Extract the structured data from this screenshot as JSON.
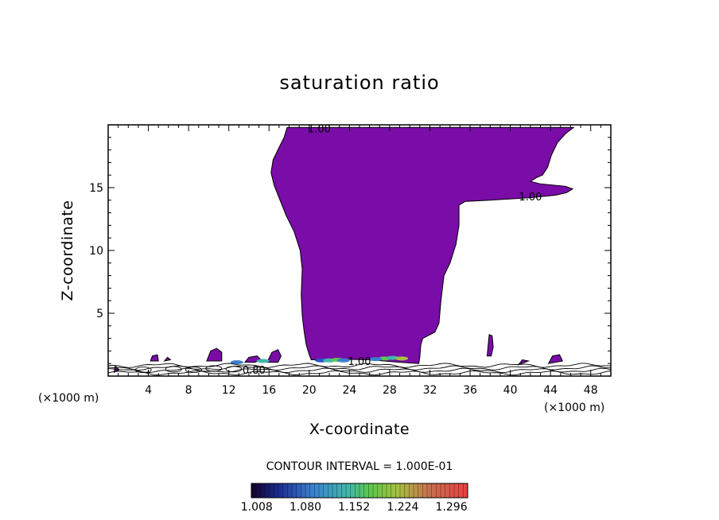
{
  "chart_data": {
    "type": "contour",
    "title": "saturation ratio",
    "xlabel": "X-coordinate",
    "ylabel": "Z-coordinate",
    "x_unit": "(×1000 m)",
    "xlim": [
      0,
      50
    ],
    "ylim": [
      0,
      20
    ],
    "x_ticks": [
      4,
      8,
      12,
      16,
      20,
      24,
      28,
      32,
      36,
      40,
      44,
      48
    ],
    "y_ticks": [
      5,
      10,
      15
    ],
    "contour_interval_text": "CONTOUR INTERVAL = 1.000E-01",
    "contour_labels": [
      {
        "text": "1.00",
        "x": 21,
        "y": 19.7
      },
      {
        "text": "1.00",
        "x": 42,
        "y": 14.3
      },
      {
        "text": "1.00",
        "x": 25,
        "y": 1.2
      },
      {
        "text": "0.80",
        "x": 14.5,
        "y": 0.5
      }
    ],
    "fill_color": "#7a0ca8",
    "colorbar": {
      "tick_labels": [
        "1.008",
        "1.080",
        "1.152",
        "1.224",
        "1.296"
      ],
      "min": 1.0,
      "max": 1.32
    },
    "regions": [
      {
        "name": "main-cloud",
        "points": [
          [
            17.8,
            19.8
          ],
          [
            46.3,
            19.8
          ],
          [
            45.5,
            19.3
          ],
          [
            44.7,
            18.6
          ],
          [
            44.1,
            17.6
          ],
          [
            43.7,
            16.6
          ],
          [
            43.2,
            16.0
          ],
          [
            42.6,
            15.8
          ],
          [
            42.0,
            15.5
          ],
          [
            43.0,
            15.3
          ],
          [
            45.5,
            15.1
          ],
          [
            46.2,
            14.9
          ],
          [
            45.6,
            14.6
          ],
          [
            44.5,
            14.4
          ],
          [
            42.0,
            14.2
          ],
          [
            38.0,
            14.0
          ],
          [
            35.5,
            13.9
          ],
          [
            34.9,
            13.6
          ],
          [
            34.9,
            13.0
          ],
          [
            34.9,
            12.0
          ],
          [
            34.6,
            10.5
          ],
          [
            34.0,
            9.0
          ],
          [
            33.4,
            8.0
          ],
          [
            33.1,
            6.0
          ],
          [
            32.9,
            4.2
          ],
          [
            32.5,
            3.5
          ],
          [
            31.3,
            3.0
          ],
          [
            31.1,
            2.5
          ],
          [
            31.0,
            1.5
          ],
          [
            30.9,
            1.0
          ],
          [
            29.0,
            1.1
          ],
          [
            26.0,
            1.3
          ],
          [
            23.0,
            1.35
          ],
          [
            20.2,
            1.3
          ],
          [
            20.0,
            1.7
          ],
          [
            19.7,
            2.5
          ],
          [
            19.5,
            3.5
          ],
          [
            19.3,
            4.8
          ],
          [
            19.2,
            6.5
          ],
          [
            19.3,
            8.5
          ],
          [
            19.1,
            10.0
          ],
          [
            18.5,
            11.5
          ],
          [
            17.7,
            12.8
          ],
          [
            17.1,
            14.0
          ],
          [
            16.5,
            15.2
          ],
          [
            16.2,
            16.2
          ],
          [
            16.4,
            17.2
          ],
          [
            17.0,
            18.2
          ],
          [
            17.5,
            19.0
          ]
        ]
      },
      {
        "name": "blob",
        "points": [
          [
            9.8,
            1.2
          ],
          [
            10.2,
            2.0
          ],
          [
            10.8,
            2.2
          ],
          [
            11.3,
            1.9
          ],
          [
            11.3,
            1.2
          ]
        ]
      },
      {
        "name": "blob",
        "points": [
          [
            15.8,
            1.1
          ],
          [
            16.3,
            1.9
          ],
          [
            16.9,
            2.1
          ],
          [
            17.2,
            1.6
          ],
          [
            16.9,
            1.1
          ]
        ]
      },
      {
        "name": "blob",
        "points": [
          [
            4.2,
            1.2
          ],
          [
            4.4,
            1.6
          ],
          [
            4.9,
            1.7
          ],
          [
            5.0,
            1.2
          ]
        ]
      },
      {
        "name": "blob",
        "points": [
          [
            5.6,
            1.2
          ],
          [
            5.9,
            1.5
          ],
          [
            6.2,
            1.3
          ]
        ]
      },
      {
        "name": "blob",
        "points": [
          [
            13.6,
            1.1
          ],
          [
            14.0,
            1.5
          ],
          [
            14.8,
            1.6
          ],
          [
            15.2,
            1.3
          ],
          [
            14.6,
            1.1
          ]
        ]
      },
      {
        "name": "blob",
        "points": [
          [
            37.7,
            1.6
          ],
          [
            37.8,
            2.5
          ],
          [
            37.9,
            3.3
          ],
          [
            38.2,
            3.2
          ],
          [
            38.3,
            2.3
          ],
          [
            38.1,
            1.6
          ]
        ]
      },
      {
        "name": "blob",
        "points": [
          [
            43.8,
            1.0
          ],
          [
            44.2,
            1.6
          ],
          [
            44.9,
            1.7
          ],
          [
            45.2,
            1.2
          ]
        ]
      },
      {
        "name": "blob",
        "points": [
          [
            40.8,
            0.9
          ],
          [
            41.2,
            1.3
          ],
          [
            41.8,
            1.2
          ]
        ]
      },
      {
        "name": "blob",
        "points": [
          [
            0.6,
            0.3
          ],
          [
            0.7,
            0.8
          ],
          [
            1.1,
            0.5
          ]
        ]
      }
    ]
  }
}
